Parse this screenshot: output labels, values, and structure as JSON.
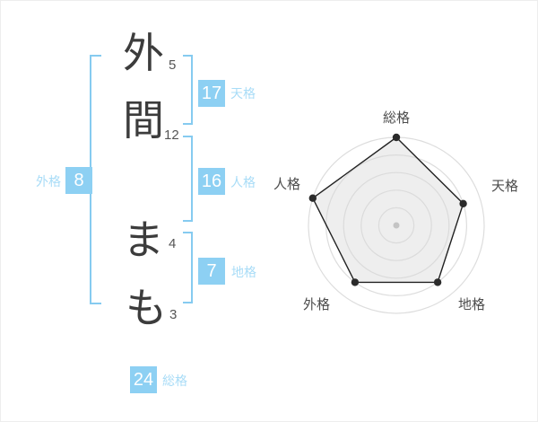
{
  "name_analysis": {
    "characters": [
      {
        "char": "外",
        "strokes": "5"
      },
      {
        "char": "間",
        "strokes": "12"
      },
      {
        "char": "ま",
        "strokes": "4"
      },
      {
        "char": "も",
        "strokes": "3"
      }
    ],
    "categories": [
      {
        "label": "天格",
        "value": "17"
      },
      {
        "label": "人格",
        "value": "16"
      },
      {
        "label": "地格",
        "value": "7"
      },
      {
        "label": "外格",
        "value": "8"
      },
      {
        "label": "総格",
        "value": "24"
      }
    ]
  },
  "chart_data": {
    "type": "radar",
    "categories": [
      "総格",
      "天格",
      "地格",
      "外格",
      "人格"
    ],
    "values": [
      100,
      80,
      80,
      80,
      100
    ],
    "max": 100,
    "rings": 5,
    "start_angle_deg": -90,
    "direction": "clockwise",
    "grid": "concentric-circles",
    "center": [
      441,
      250
    ],
    "outer_radius": 98,
    "title": "",
    "xlabel": "",
    "ylabel": ""
  },
  "colors": {
    "badge_bg": "#8dd0f3",
    "badge_text": "#ffffff",
    "category_label": "#a8dcf7",
    "bracket": "#86cbf0",
    "ring": "#dddddd",
    "polygon_fill": "#d9d9d9",
    "polygon_stroke": "#222222",
    "vertex_dot": "#2b2b2b",
    "center_dot": "#c4c4c4",
    "name_text": "#3c3c3c",
    "radar_label": "#4d4d4d"
  }
}
